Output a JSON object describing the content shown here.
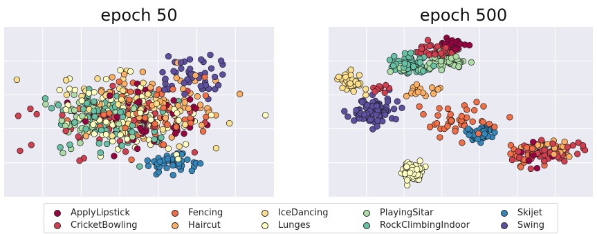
{
  "chart_data": [
    {
      "type": "scatter",
      "title": "epoch 50",
      "xlabel": "",
      "ylabel": "",
      "grid": true,
      "tick_labels": false,
      "clusters": [
        {
          "cls": 0,
          "n": 55,
          "cx": 0.5,
          "cy": 0.55,
          "sx": 0.28,
          "sy": 0.18
        },
        {
          "cls": 1,
          "n": 60,
          "cx": 0.45,
          "cy": 0.55,
          "sx": 0.28,
          "sy": 0.2
        },
        {
          "cls": 2,
          "n": 60,
          "cx": 0.5,
          "cy": 0.5,
          "sx": 0.28,
          "sy": 0.2
        },
        {
          "cls": 3,
          "n": 55,
          "cx": 0.55,
          "cy": 0.45,
          "sx": 0.25,
          "sy": 0.2
        },
        {
          "cls": 4,
          "n": 50,
          "cx": 0.45,
          "cy": 0.5,
          "sx": 0.25,
          "sy": 0.2
        },
        {
          "cls": 5,
          "n": 110,
          "cx": 0.45,
          "cy": 0.5,
          "sx": 0.26,
          "sy": 0.21
        },
        {
          "cls": 6,
          "n": 50,
          "cx": 0.35,
          "cy": 0.55,
          "sx": 0.18,
          "sy": 0.16
        },
        {
          "cls": 7,
          "n": 80,
          "cx": 0.4,
          "cy": 0.55,
          "sx": 0.22,
          "sy": 0.18
        },
        {
          "cls": 8,
          "n": 40,
          "cx": 0.62,
          "cy": 0.8,
          "sx": 0.09,
          "sy": 0.07
        },
        {
          "cls": 9,
          "n": 45,
          "cx": 0.7,
          "cy": 0.28,
          "sx": 0.13,
          "sy": 0.12
        }
      ]
    },
    {
      "type": "scatter",
      "title": "epoch 500",
      "xlabel": "",
      "ylabel": "",
      "grid": true,
      "tick_labels": false,
      "clusters": [
        {
          "cls": 0,
          "n": 30,
          "cx": 0.47,
          "cy": 0.1,
          "sx": 0.05,
          "sy": 0.03
        },
        {
          "cls": 0,
          "n": 14,
          "cx": 0.78,
          "cy": 0.75,
          "sx": 0.07,
          "sy": 0.06
        },
        {
          "cls": 1,
          "n": 35,
          "cx": 0.42,
          "cy": 0.14,
          "sx": 0.07,
          "sy": 0.04
        },
        {
          "cls": 1,
          "n": 40,
          "cx": 0.83,
          "cy": 0.74,
          "sx": 0.12,
          "sy": 0.06
        },
        {
          "cls": 1,
          "n": 10,
          "cx": 0.2,
          "cy": 0.37,
          "sx": 0.05,
          "sy": 0.04
        },
        {
          "cls": 2,
          "n": 40,
          "cx": 0.5,
          "cy": 0.55,
          "sx": 0.17,
          "sy": 0.12
        },
        {
          "cls": 2,
          "n": 25,
          "cx": 0.75,
          "cy": 0.75,
          "sx": 0.1,
          "sy": 0.07
        },
        {
          "cls": 3,
          "n": 25,
          "cx": 0.85,
          "cy": 0.72,
          "sx": 0.08,
          "sy": 0.05
        },
        {
          "cls": 3,
          "n": 15,
          "cx": 0.35,
          "cy": 0.38,
          "sx": 0.1,
          "sy": 0.05
        },
        {
          "cls": 4,
          "n": 40,
          "cx": 0.08,
          "cy": 0.33,
          "sx": 0.05,
          "sy": 0.07
        },
        {
          "cls": 5,
          "n": 90,
          "cx": 0.32,
          "cy": 0.85,
          "sx": 0.04,
          "sy": 0.05
        },
        {
          "cls": 6,
          "n": 55,
          "cx": 0.45,
          "cy": 0.2,
          "sx": 0.08,
          "sy": 0.06
        },
        {
          "cls": 6,
          "n": 15,
          "cx": 0.28,
          "cy": 0.25,
          "sx": 0.04,
          "sy": 0.04
        },
        {
          "cls": 7,
          "n": 70,
          "cx": 0.31,
          "cy": 0.22,
          "sx": 0.08,
          "sy": 0.06
        },
        {
          "cls": 8,
          "n": 50,
          "cx": 0.58,
          "cy": 0.63,
          "sx": 0.04,
          "sy": 0.04
        },
        {
          "cls": 9,
          "n": 80,
          "cx": 0.17,
          "cy": 0.5,
          "sx": 0.08,
          "sy": 0.07
        }
      ]
    }
  ],
  "legend": {
    "entries": [
      {
        "label": "ApplyLipstick",
        "color": "#9e0142"
      },
      {
        "label": "CricketBowling",
        "color": "#d53e4f"
      },
      {
        "label": "Fencing",
        "color": "#f46d43"
      },
      {
        "label": "Haircut",
        "color": "#fdae61"
      },
      {
        "label": "IceDancing",
        "color": "#fee08b"
      },
      {
        "label": "Lunges",
        "color": "#ffffbf"
      },
      {
        "label": "PlayingSitar",
        "color": "#abdda4"
      },
      {
        "label": "RockClimbingIndoor",
        "color": "#66c2a5"
      },
      {
        "label": "Skijet",
        "color": "#3288bd"
      },
      {
        "label": "Swing",
        "color": "#5e4fa2"
      }
    ]
  }
}
